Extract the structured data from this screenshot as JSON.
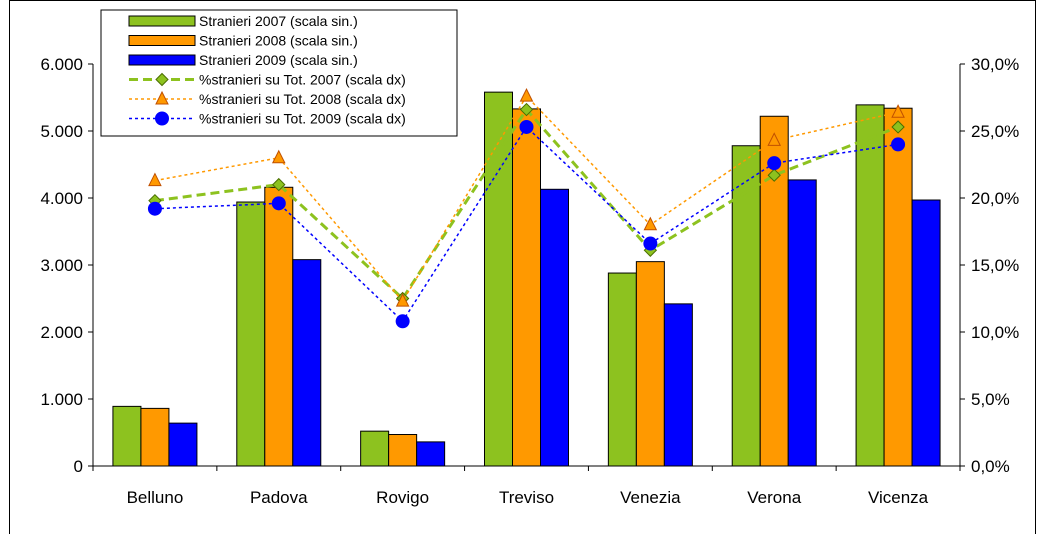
{
  "chart_data": {
    "type": "bar",
    "categories": [
      "Belluno",
      "Padova",
      "Rovigo",
      "Treviso",
      "Venezia",
      "Verona",
      "Vicenza"
    ],
    "bar_series": [
      {
        "name": "Stranieri 2007 (scala sin.)",
        "color": "#8DC21F",
        "values": [
          890,
          3940,
          520,
          5580,
          2880,
          4780,
          5390
        ]
      },
      {
        "name": "Stranieri 2008 (scala sin.)",
        "color": "#FF9900",
        "values": [
          860,
          4160,
          470,
          5330,
          3050,
          5220,
          5340
        ]
      },
      {
        "name": "Stranieri 2009 (scala sin.)",
        "color": "#0000FF",
        "values": [
          640,
          3080,
          360,
          4130,
          2420,
          4270,
          3970
        ]
      }
    ],
    "line_series": [
      {
        "name": "%stranieri su Tot. 2007 (scala dx)",
        "color": "#8DC21F",
        "marker": "diamond",
        "dash": "dashed",
        "values": [
          19.8,
          21.0,
          12.5,
          26.6,
          16.1,
          21.7,
          25.3
        ]
      },
      {
        "name": "%stranieri su Tot. 2008 (scala dx)",
        "color": "#FF9900",
        "marker": "triangle",
        "dash": "dotted",
        "values": [
          21.3,
          23.0,
          12.3,
          27.6,
          18.0,
          24.3,
          26.4
        ]
      },
      {
        "name": "%stranieri su Tot. 2009 (scala dx)",
        "color": "#0000FF",
        "marker": "circle",
        "dash": "dotted",
        "values": [
          19.2,
          19.6,
          10.8,
          25.3,
          16.6,
          22.6,
          24.0
        ]
      }
    ],
    "y_left": {
      "min": 0,
      "max": 6000,
      "ticks": [
        "0",
        "1.000",
        "2.000",
        "3.000",
        "4.000",
        "5.000",
        "6.000"
      ]
    },
    "y_right": {
      "min": 0,
      "max": 30,
      "ticks": [
        "0,0%",
        "5,0%",
        "10,0%",
        "15,0%",
        "20,0%",
        "25,0%",
        "30,0%"
      ]
    },
    "gridlines": false,
    "legend_position": "top-left"
  }
}
